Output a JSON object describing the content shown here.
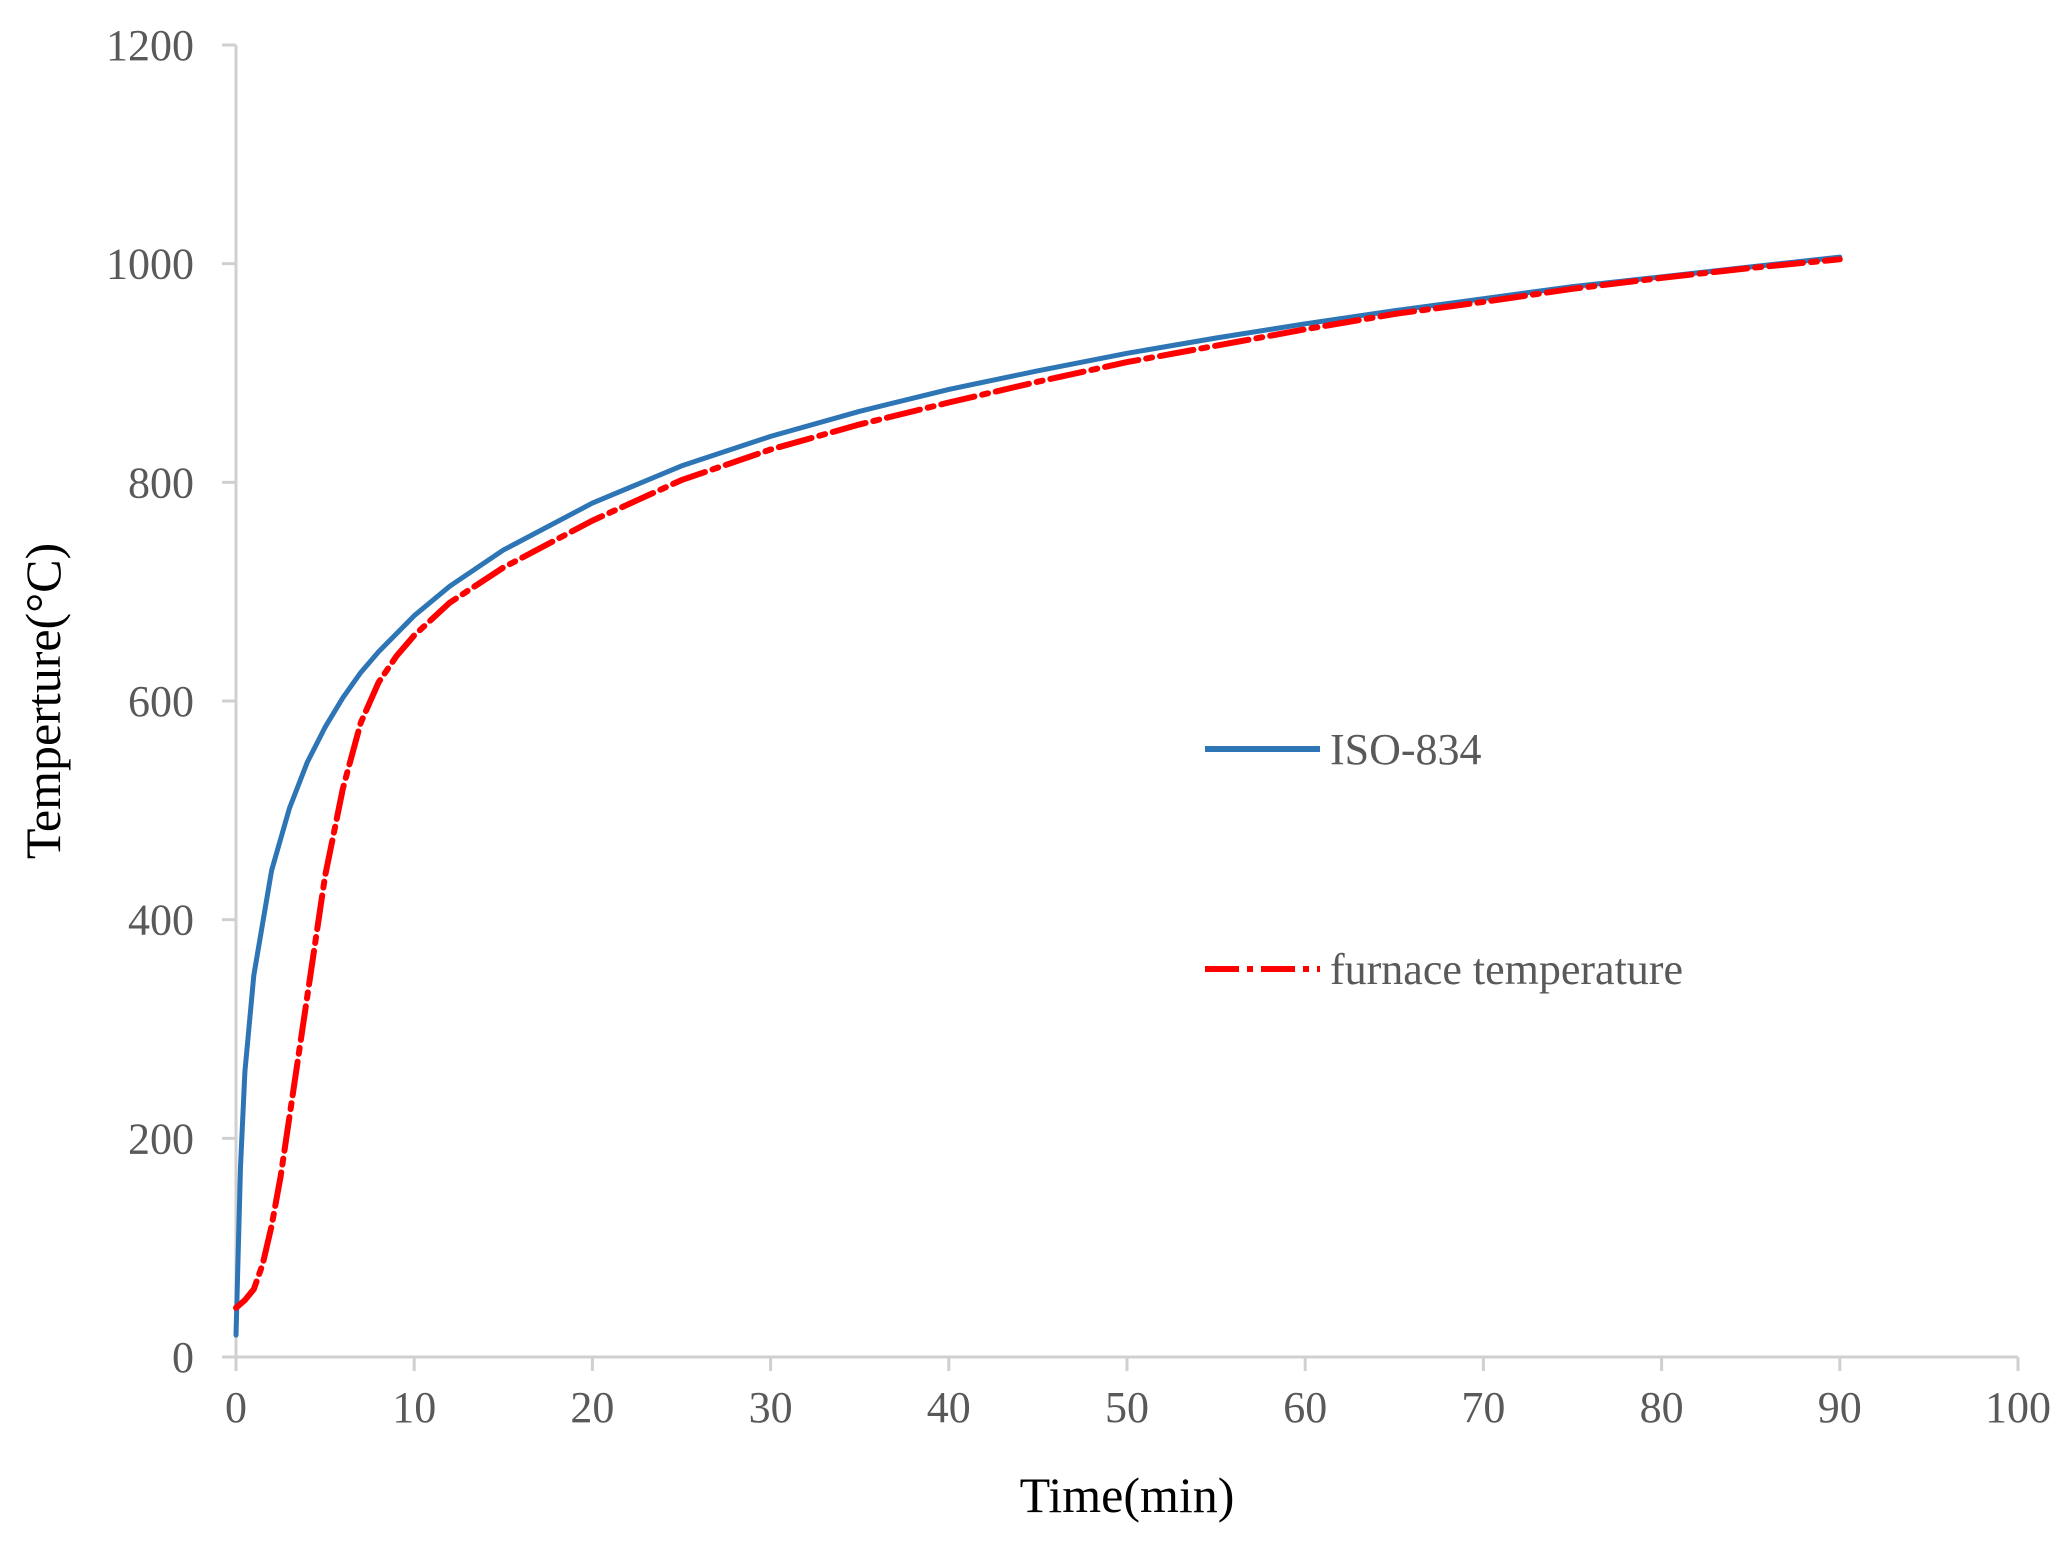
{
  "chart_data": {
    "type": "line",
    "title": "",
    "xlabel": "Time(min)",
    "ylabel": "Temperture(°C)",
    "xlim": [
      0,
      100
    ],
    "ylim": [
      0,
      1200
    ],
    "xticks": [
      0,
      10,
      20,
      30,
      40,
      50,
      60,
      70,
      80,
      90,
      100
    ],
    "yticks": [
      0,
      200,
      400,
      600,
      800,
      1000,
      1200
    ],
    "grid": false,
    "legend": "center-right",
    "series": [
      {
        "name": "ISO-834",
        "color": "#2e75b6",
        "style": "solid",
        "x": [
          0,
          0.25,
          0.5,
          1,
          2,
          3,
          4,
          5,
          6,
          7,
          8,
          10,
          12,
          15,
          20,
          25,
          30,
          35,
          40,
          45,
          50,
          55,
          60,
          65,
          70,
          75,
          80,
          85,
          90
        ],
        "y": [
          20,
          174,
          261,
          349,
          445,
          502,
          544,
          576,
          603,
          626,
          645,
          678,
          705,
          738,
          781,
          815,
          842,
          865,
          885,
          902,
          918,
          932,
          945,
          957,
          968,
          979,
          988,
          997,
          1006
        ]
      },
      {
        "name": "furnace temperature",
        "color": "#ff0000",
        "style": "dash-dot",
        "x": [
          0,
          0.5,
          1,
          1.5,
          2,
          2.5,
          3,
          4,
          5,
          6,
          7,
          8,
          9,
          10,
          12,
          15,
          20,
          25,
          30,
          35,
          40,
          45,
          50,
          55,
          60,
          65,
          70,
          75,
          80,
          85,
          90
        ],
        "y": [
          45,
          52,
          62,
          85,
          120,
          165,
          220,
          330,
          440,
          520,
          580,
          617,
          641,
          660,
          690,
          722,
          765,
          802,
          830,
          853,
          873,
          892,
          910,
          925,
          940,
          954,
          965,
          977,
          987,
          996,
          1004
        ]
      }
    ]
  }
}
